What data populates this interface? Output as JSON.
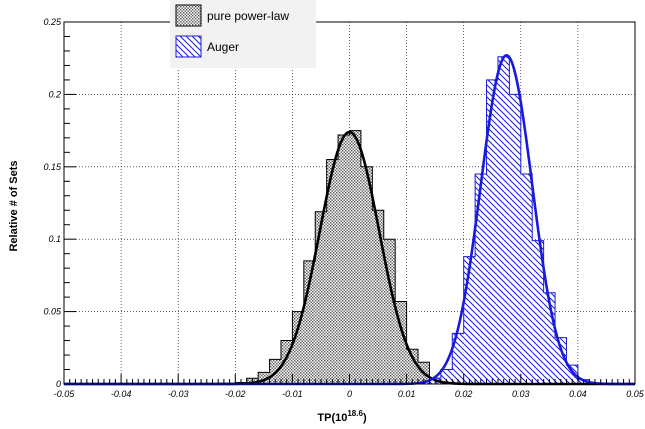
{
  "chart_data": {
    "type": "histogram",
    "title": "",
    "xlabel": "TP(10",
    "xlabel_sup": "18.6",
    "xlabel_close": ")",
    "ylabel": "Relative # of Sets",
    "xlim": [
      -0.05,
      0.05
    ],
    "ylim": [
      0,
      0.25
    ],
    "x_ticks": [
      -0.05,
      -0.04,
      -0.03,
      -0.02,
      -0.01,
      0,
      0.01,
      0.02,
      0.03,
      0.04,
      0.05
    ],
    "x_tick_labels": [
      "-0.05",
      "-0.04",
      "-0.03",
      "-0.02",
      "-0.01",
      "0",
      "0.01",
      "0.02",
      "0.03",
      "0.04",
      "0.05"
    ],
    "y_ticks": [
      0,
      0.05,
      0.1,
      0.15,
      0.2,
      0.25
    ],
    "y_tick_labels": [
      "0",
      "0.05",
      "0.1",
      "0.15",
      "0.2",
      "0.25"
    ],
    "grid": true,
    "legend_position": "top-left",
    "bin_width": 0.002,
    "series": [
      {
        "name": "pure power-law",
        "color": "#000000",
        "fill": "dotted-gray",
        "bin_starts": [
          -0.02,
          -0.018,
          -0.016,
          -0.014,
          -0.012,
          -0.01,
          -0.008,
          -0.006,
          -0.004,
          -0.002,
          0.0,
          0.002,
          0.004,
          0.006,
          0.008,
          0.01,
          0.012,
          0.014
        ],
        "values": [
          0.001,
          0.004,
          0.008,
          0.017,
          0.03,
          0.05,
          0.085,
          0.119,
          0.155,
          0.172,
          0.175,
          0.15,
          0.12,
          0.1,
          0.057,
          0.024,
          0.015,
          0.004
        ],
        "fit_mean": 0.0,
        "fit_sigma": 0.0052,
        "fit_amplitude": 0.174
      },
      {
        "name": "Auger",
        "color": "#1a1adc",
        "fill": "diagonal-hatch",
        "bin_starts": [
          0.014,
          0.016,
          0.018,
          0.02,
          0.022,
          0.024,
          0.026,
          0.028,
          0.03,
          0.032,
          0.034,
          0.036,
          0.038,
          0.04
        ],
        "values": [
          0.004,
          0.01,
          0.035,
          0.088,
          0.145,
          0.21,
          0.226,
          0.2,
          0.145,
          0.099,
          0.063,
          0.032,
          0.013,
          0.003
        ],
        "fit_mean": 0.0275,
        "fit_sigma": 0.0045,
        "fit_amplitude": 0.227
      }
    ]
  }
}
